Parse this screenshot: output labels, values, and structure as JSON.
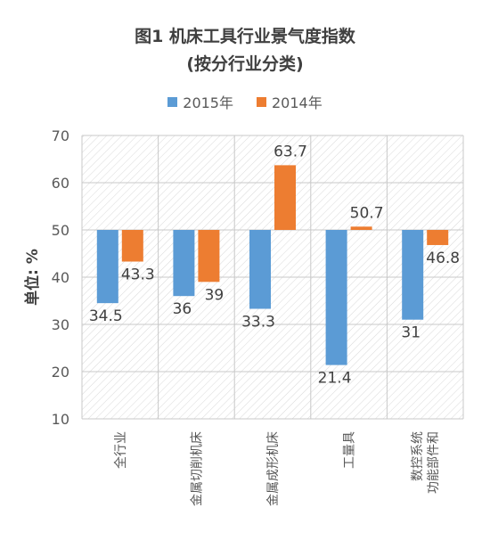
{
  "chart_data": {
    "type": "bar",
    "title": "图1  机床工具行业景气度指数",
    "subtitle": "(按分行业分类)",
    "ylabel": "单位: %",
    "xlabel": "",
    "ylim": [
      10,
      70
    ],
    "yticks": [
      "10",
      "20",
      "30",
      "40",
      "50",
      "60",
      "70"
    ],
    "baseline": 50,
    "grid": true,
    "legend_position": "top",
    "categories": [
      [
        "全行业"
      ],
      [
        "金属切削机床"
      ],
      [
        "金属成形机床"
      ],
      [
        "工量具"
      ],
      [
        "功能部件和",
        "数控系统"
      ]
    ],
    "series": [
      {
        "name": "2015年",
        "color": "#5b9bd5",
        "values": [
          34.5,
          36,
          33.3,
          21.4,
          31
        ],
        "labels": [
          "34.5",
          "36",
          "33.3",
          "21.4",
          "31"
        ]
      },
      {
        "name": "2014年",
        "color": "#ed7d31",
        "values": [
          43.3,
          39,
          63.7,
          50.7,
          46.8
        ],
        "labels": [
          "43.3",
          "39",
          "63.7",
          "50.7",
          "46.8"
        ]
      }
    ]
  }
}
